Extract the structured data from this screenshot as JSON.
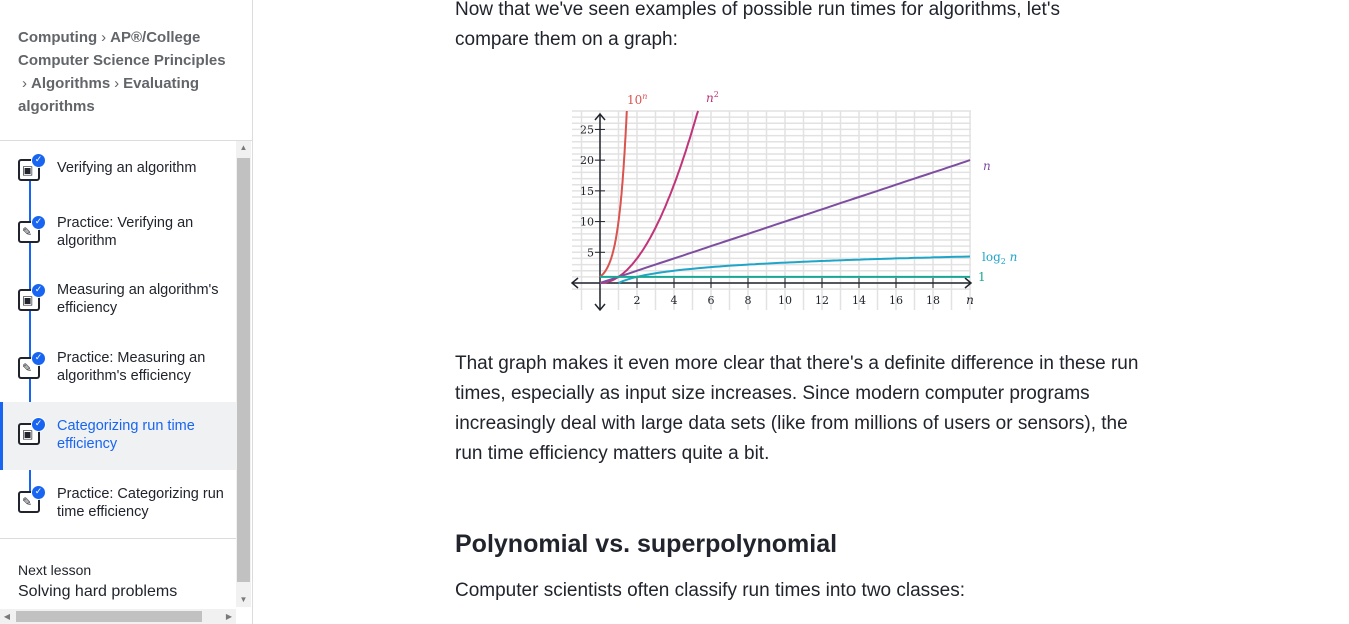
{
  "sidebar": {
    "breadcrumb": {
      "items": [
        "Computing",
        "AP®︎/College Computer Science Principles",
        "Algorithms",
        "Evaluating algorithms"
      ],
      "separator": "›"
    },
    "lessons": [
      {
        "label": "Verifying an algorithm",
        "icon": "article-icon",
        "completed": true,
        "active": false
      },
      {
        "label": "Practice: Verifying an algorithm",
        "icon": "pencil-icon",
        "completed": true,
        "active": false
      },
      {
        "label": "Measuring an algorithm's efficiency",
        "icon": "article-icon",
        "completed": true,
        "active": false
      },
      {
        "label": "Practice: Measuring an algorithm's efficiency",
        "icon": "pencil-icon",
        "completed": true,
        "active": false
      },
      {
        "label": "Categorizing run time efficiency",
        "icon": "article-icon",
        "completed": true,
        "active": true
      },
      {
        "label": "Practice: Categorizing run time efficiency",
        "icon": "pencil-icon",
        "completed": true,
        "active": false
      }
    ],
    "next_lesson": {
      "caption": "Next lesson",
      "title": "Solving hard problems"
    }
  },
  "main": {
    "intro": "Now that we've seen examples of possible run times for algorithms, let's compare them on a graph:",
    "para2": "That graph makes it even more clear that there's a definite difference in these run times, especially as input size increases. Since modern computer programs increasingly deal with large data sets (like from millions of users or sensors), the run time efficiency matters quite a bit.",
    "heading": "Polynomial vs. superpolynomial",
    "para3": "Computer scientists often classify run times into two classes:"
  },
  "chart_data": {
    "type": "line",
    "xlabel": "n",
    "x_ticks": [
      2,
      4,
      6,
      8,
      10,
      12,
      14,
      16,
      18
    ],
    "y_ticks": [
      5,
      10,
      15,
      20,
      25
    ],
    "xlim": [
      0,
      20
    ],
    "ylim": [
      0,
      28
    ],
    "grid": true,
    "series": [
      {
        "name": "10^n",
        "color": "#d9534f",
        "x": [
          0,
          0.5,
          1,
          1.2,
          1.35,
          1.45
        ],
        "y": [
          1,
          3.16,
          10,
          15.85,
          22.4,
          28
        ]
      },
      {
        "name": "n^2",
        "color": "#c0347a",
        "x": [
          0,
          1,
          2,
          3,
          4,
          5,
          5.3
        ],
        "y": [
          0,
          1,
          4,
          9,
          16,
          25,
          28
        ]
      },
      {
        "name": "n",
        "color": "#7d4ea0",
        "x": [
          0,
          20
        ],
        "y": [
          0,
          20
        ]
      },
      {
        "name": "log2 n",
        "color": "#1fa5c8",
        "x": [
          1,
          2,
          4,
          8,
          12,
          16,
          20
        ],
        "y": [
          0,
          1,
          2,
          3,
          3.58,
          4,
          4.32
        ]
      },
      {
        "name": "1",
        "color": "#17a794",
        "x": [
          0,
          20
        ],
        "y": [
          1,
          1
        ]
      }
    ]
  }
}
